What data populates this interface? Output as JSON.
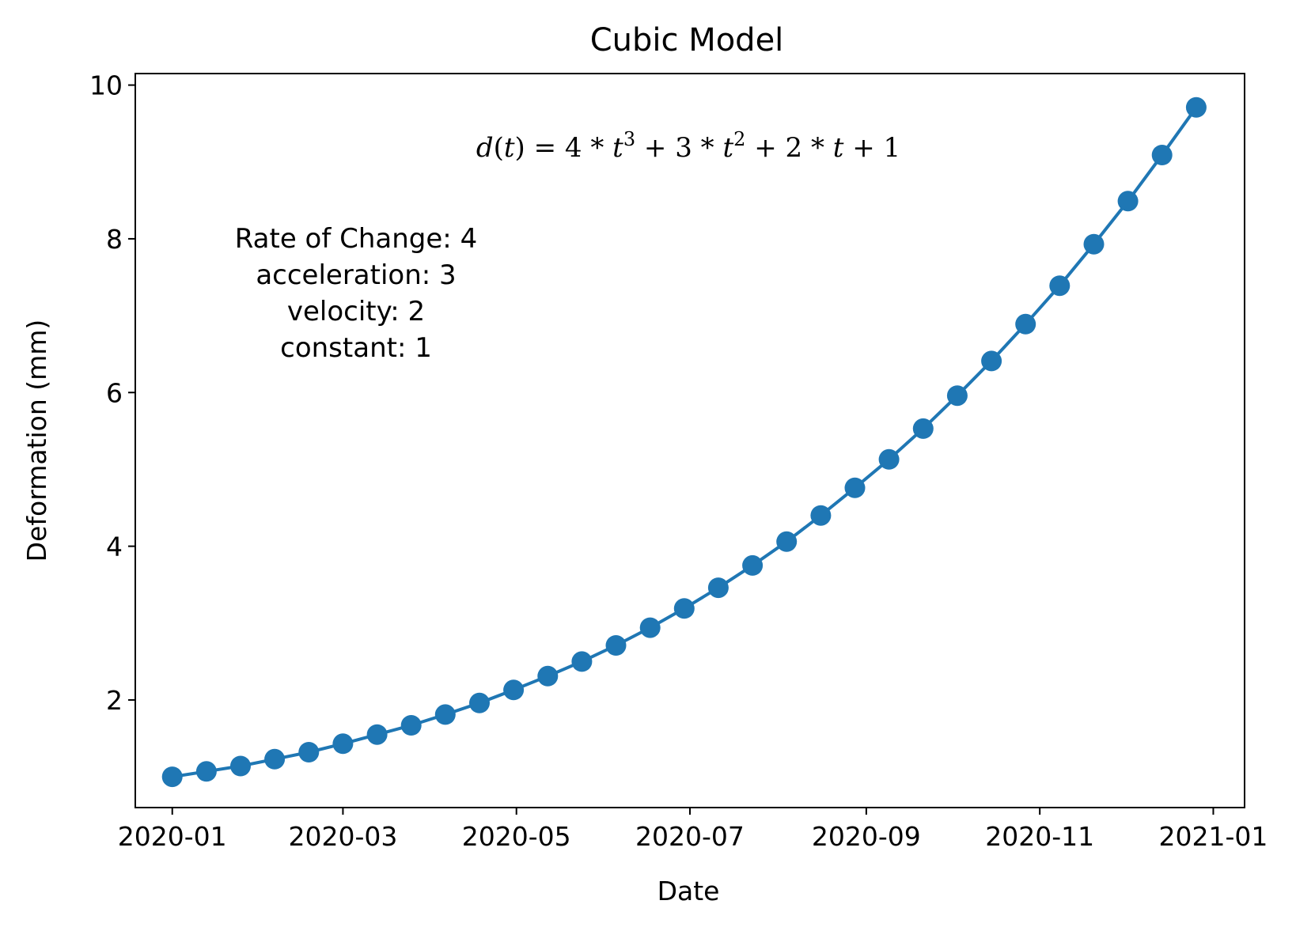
{
  "chart_data": {
    "type": "line",
    "title": "Cubic Model",
    "xlabel": "Date",
    "ylabel": "Deformation (mm)",
    "xlim": [
      "2019-12-19",
      "2021-01-12"
    ],
    "ylim": [
      0.6,
      10.15
    ],
    "x_ticks": [
      "2020-01",
      "2020-03",
      "2020-05",
      "2020-07",
      "2020-09",
      "2020-11",
      "2021-01"
    ],
    "y_ticks": [
      2,
      4,
      6,
      8,
      10
    ],
    "grid": false,
    "color": "#1f77b4",
    "marker": "circle",
    "series": [
      {
        "x": [
          "2020-01-01",
          "2020-01-13",
          "2020-01-25",
          "2020-02-06",
          "2020-02-18",
          "2020-03-01",
          "2020-03-13",
          "2020-03-25",
          "2020-04-06",
          "2020-04-18",
          "2020-04-30",
          "2020-05-12",
          "2020-05-24",
          "2020-06-05",
          "2020-06-17",
          "2020-06-29",
          "2020-07-11",
          "2020-07-23",
          "2020-08-04",
          "2020-08-16",
          "2020-08-28",
          "2020-09-09",
          "2020-09-21",
          "2020-10-03",
          "2020-10-15",
          "2020-10-27",
          "2020-11-08",
          "2020-11-20",
          "2020-12-02",
          "2020-12-14",
          "2020-12-26"
        ],
        "values": [
          1.0,
          1.07,
          1.14,
          1.23,
          1.32,
          1.43,
          1.55,
          1.67,
          1.81,
          1.96,
          2.13,
          2.31,
          2.5,
          2.71,
          2.94,
          3.19,
          3.46,
          3.75,
          4.06,
          4.4,
          4.76,
          5.13,
          5.53,
          5.96,
          6.41,
          6.89,
          7.39,
          7.93,
          8.49,
          9.09,
          9.71
        ]
      }
    ],
    "annotations": {
      "formula": {
        "lhs": "d(t) = 4 * t",
        "lhs_parts": [
          "d",
          "(",
          "t",
          ") = 4 * ",
          "t"
        ],
        "sup1": "3",
        "mid": " + 3 * ",
        "t2": "t",
        "sup2": "2",
        "tail_a": " + 2 * ",
        "t3": "t",
        "tail_b": " + 1"
      },
      "coefficients": [
        "Rate of Change: 4",
        "acceleration: 3",
        "velocity: 2",
        "constant: 1"
      ]
    }
  }
}
